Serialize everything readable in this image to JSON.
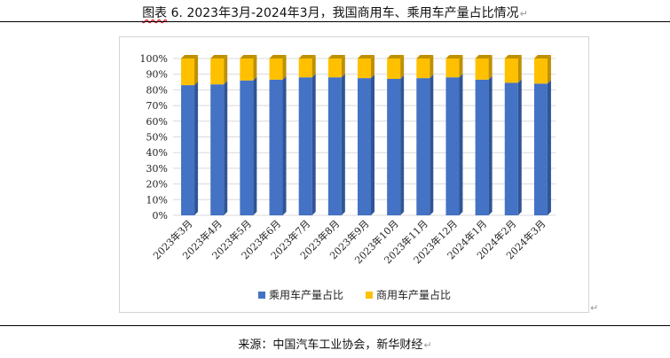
{
  "figure": {
    "label": "图表",
    "number": "6.",
    "caption": "2023年3月-2024年3月，我国商用车、乘用车产量占比情况",
    "para_mark": "↵"
  },
  "source_line": "来源：中国汽车工业协会，新华财经",
  "colors": {
    "passenger": "#4472C4",
    "passenger_side": "#2F5597",
    "commercial": "#FFC000",
    "commercial_side": "#BF9000",
    "grid": "#d9d9d9"
  },
  "chart_data": {
    "type": "bar",
    "stacked": true,
    "percent": true,
    "categories": [
      "2023年3月",
      "2023年4月",
      "2023年5月",
      "2023年6月",
      "2023年7月",
      "2023年8月",
      "2023年9月",
      "2023年10月",
      "2023年11月",
      "2023年12月",
      "2024年1月",
      "2024年2月",
      "2024年3月"
    ],
    "series": [
      {
        "name": "乘用车产量占比",
        "values": [
          83,
          83.5,
          86,
          86.5,
          88,
          88,
          87.5,
          87,
          87.5,
          88,
          86.5,
          84.5,
          84
        ]
      },
      {
        "name": "商用车产量占比",
        "values": [
          17,
          16.5,
          14,
          13.5,
          12,
          12,
          12.5,
          13,
          12.5,
          12,
          13.5,
          15.5,
          16
        ]
      }
    ],
    "y_ticks": [
      "0%",
      "10%",
      "20%",
      "30%",
      "40%",
      "50%",
      "60%",
      "70%",
      "80%",
      "90%",
      "100%"
    ],
    "ylim": [
      0,
      100
    ],
    "grid": true,
    "legend_position": "bottom"
  }
}
